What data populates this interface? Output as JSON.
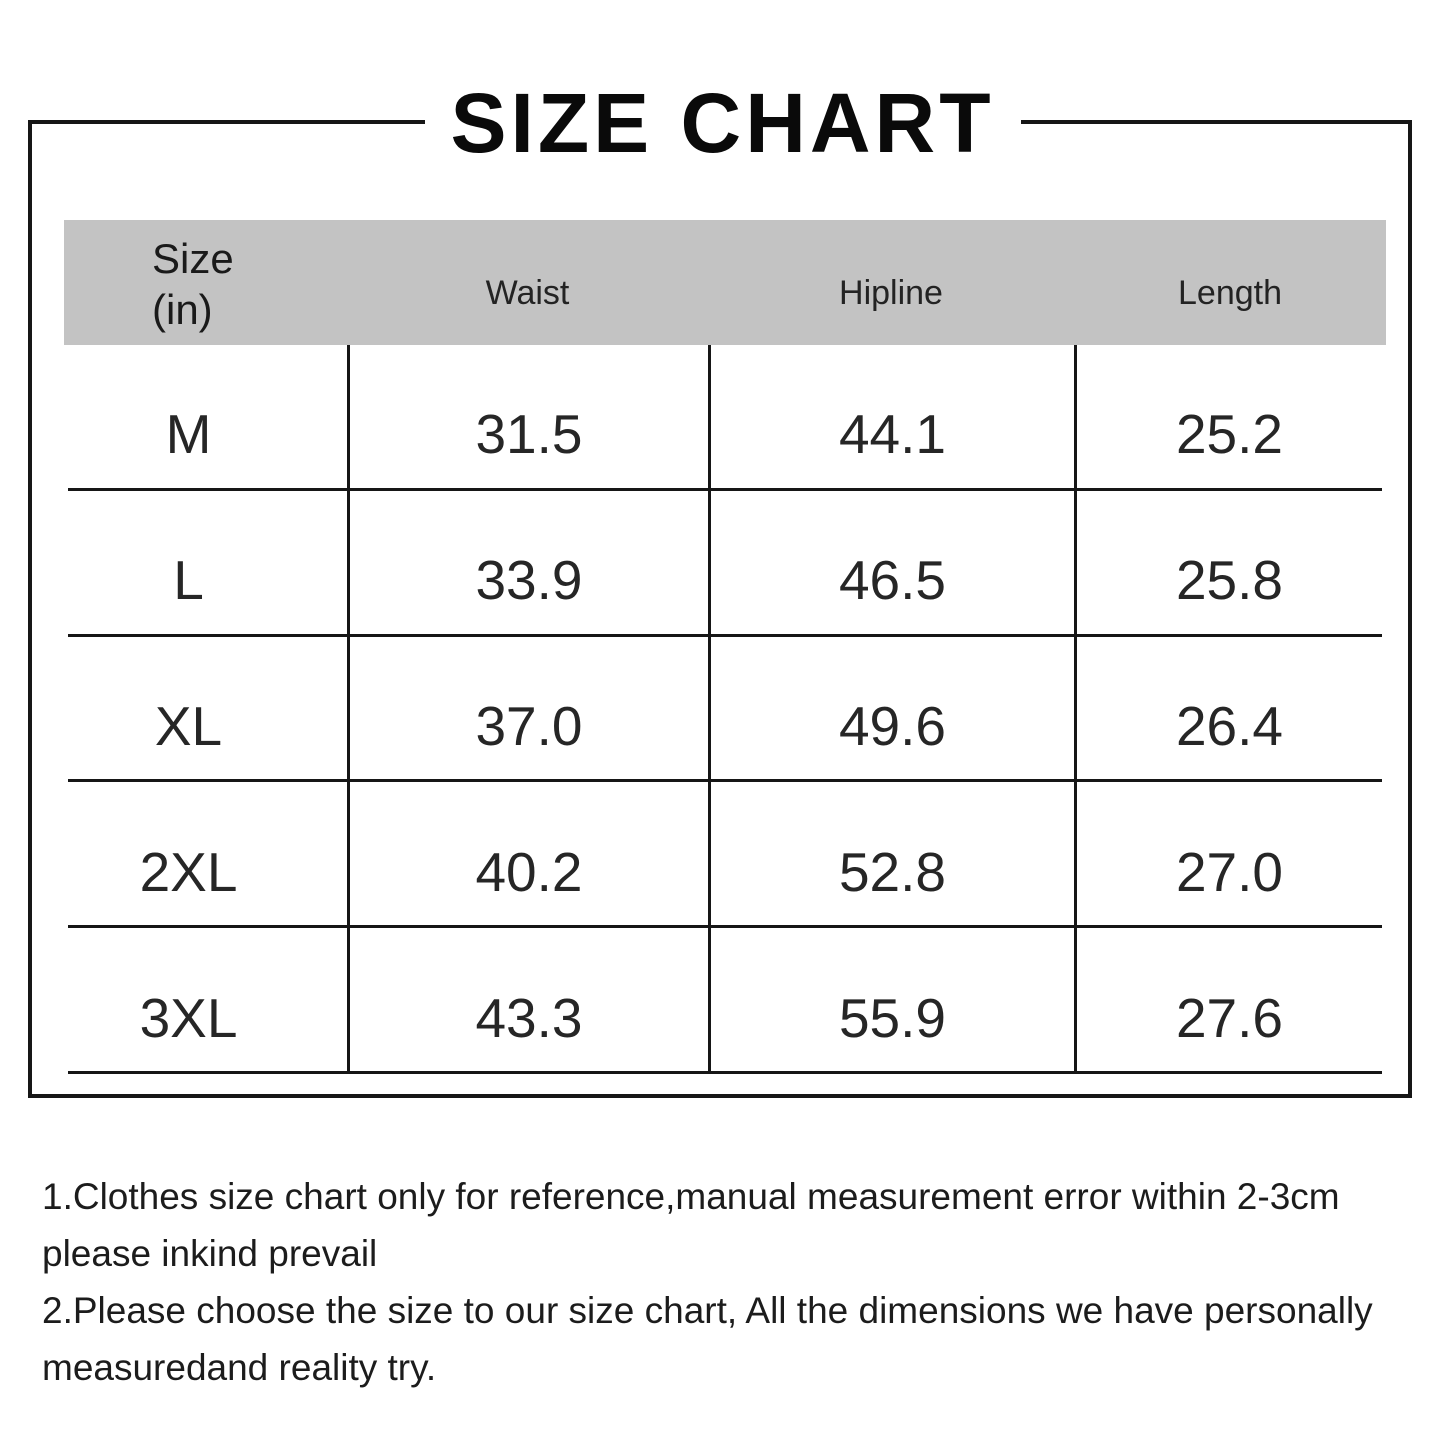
{
  "title": "SIZE CHART",
  "table": {
    "size_header": {
      "line1": "Size",
      "line2": "(in)"
    },
    "columns": [
      "Waist",
      "Hipline",
      "Length"
    ],
    "rows": [
      {
        "size": "M",
        "waist": "31.5",
        "hipline": "44.1",
        "length": "25.2"
      },
      {
        "size": "L",
        "waist": "33.9",
        "hipline": "46.5",
        "length": "25.8"
      },
      {
        "size": "XL",
        "waist": "37.0",
        "hipline": "49.6",
        "length": "26.4"
      },
      {
        "size": "2XL",
        "waist": "40.2",
        "hipline": "52.8",
        "length": "27.0"
      },
      {
        "size": "3XL",
        "waist": "43.3",
        "hipline": "55.9",
        "length": "27.6"
      }
    ]
  },
  "notes": [
    {
      "line1": "1.Clothes size chart only for reference,manual measurement error within 2-3cm",
      "line2": "please inkind prevail"
    },
    {
      "line1": "2.Please choose the size to our size chart, All the dimensions we have personally",
      "line2": "measuredand reality try."
    }
  ],
  "colors": {
    "header_bg": "#c3c3c3",
    "grid_line": "#161616",
    "frame_border": "#161616",
    "title_text": "#0a0a0a",
    "body_text": "#262626"
  },
  "chart_data": {
    "type": "table",
    "title": "SIZE CHART",
    "unit": "inches",
    "columns": [
      "Size (in)",
      "Waist",
      "Hipline",
      "Length"
    ],
    "categories": [
      "M",
      "L",
      "XL",
      "2XL",
      "3XL"
    ],
    "series": [
      {
        "name": "Waist",
        "values": [
          31.5,
          33.9,
          37.0,
          40.2,
          43.3
        ]
      },
      {
        "name": "Hipline",
        "values": [
          44.1,
          46.5,
          49.6,
          52.8,
          55.9
        ]
      },
      {
        "name": "Length",
        "values": [
          25.2,
          25.8,
          26.4,
          27.0,
          27.6
        ]
      }
    ]
  }
}
